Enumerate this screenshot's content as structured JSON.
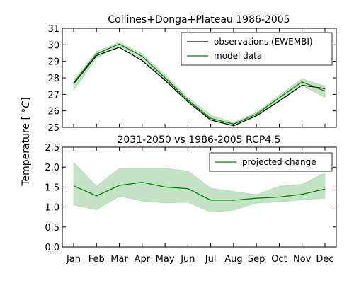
{
  "chart_data": [
    {
      "type": "line",
      "title": "Collines+Donga+Plateau 1986-2005",
      "x": [
        "Jan",
        "Feb",
        "Mar",
        "Apr",
        "May",
        "Jun",
        "Jul",
        "Aug",
        "Sep",
        "Oct",
        "Nov",
        "Dec"
      ],
      "ylim": [
        25,
        31
      ],
      "yticks": [
        "25",
        "26",
        "27",
        "28",
        "29",
        "30",
        "31"
      ],
      "legend_position": "top-right",
      "series": [
        {
          "name": "observations (EWEMBI)",
          "color": "#000000",
          "values": [
            27.65,
            29.35,
            29.85,
            29.05,
            27.85,
            26.55,
            25.45,
            25.1,
            25.7,
            26.6,
            27.55,
            27.35
          ]
        },
        {
          "name": "model data",
          "color": "#008000",
          "values": [
            27.7,
            29.45,
            30.05,
            29.3,
            28.0,
            26.65,
            25.55,
            25.2,
            25.8,
            26.8,
            27.75,
            27.2
          ],
          "band_low": [
            27.25,
            29.2,
            29.95,
            29.15,
            27.9,
            26.55,
            25.4,
            25.1,
            25.7,
            26.65,
            27.55,
            26.8
          ],
          "band_high": [
            27.85,
            29.6,
            30.15,
            29.45,
            28.15,
            26.8,
            25.75,
            25.3,
            25.9,
            26.95,
            27.95,
            27.5
          ],
          "band_color": "#b0d9b0"
        }
      ]
    },
    {
      "type": "line",
      "title": "2031-2050 vs 1986-2005 RCP4.5",
      "x": [
        "Jan",
        "Feb",
        "Mar",
        "Apr",
        "May",
        "Jun",
        "Jul",
        "Aug",
        "Sep",
        "Oct",
        "Nov",
        "Dec"
      ],
      "ylim": [
        0,
        2.5
      ],
      "yticks": [
        "0.0",
        "0.5",
        "1.0",
        "1.5",
        "2.0",
        "2.5"
      ],
      "legend_position": "top-right",
      "series": [
        {
          "name": "projected change",
          "color": "#008000",
          "values": [
            1.53,
            1.28,
            1.54,
            1.62,
            1.5,
            1.46,
            1.17,
            1.17,
            1.22,
            1.25,
            1.32,
            1.45
          ],
          "band_low": [
            1.05,
            0.93,
            1.27,
            1.15,
            1.1,
            1.12,
            0.87,
            0.92,
            1.1,
            1.13,
            1.18,
            1.22
          ],
          "band_high": [
            2.12,
            1.52,
            1.97,
            1.97,
            1.97,
            1.9,
            1.47,
            1.39,
            1.31,
            1.52,
            1.57,
            1.86
          ],
          "band_color": "#b0d9b0"
        }
      ]
    }
  ],
  "shared_ylabel": "Temperature [ $^\\circ C$]",
  "shared_ylabel_display": "Temperature [ °C]"
}
